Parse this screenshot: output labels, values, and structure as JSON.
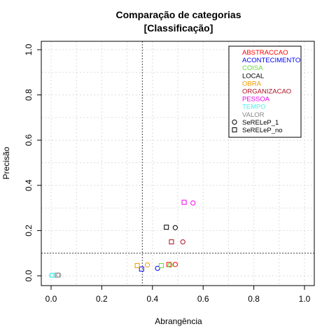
{
  "chart_data": {
    "type": "scatter",
    "title_line1": "Comparação de categorias",
    "title_line2": "[Classificação]",
    "xlabel": "Abrangência",
    "ylabel": "Precisão",
    "xlim": [
      0,
      1
    ],
    "ylim": [
      0,
      1
    ],
    "xticks": [
      "0.0",
      "0.2",
      "0.4",
      "0.6",
      "0.8",
      "1.0"
    ],
    "yticks": [
      "0.0",
      "0.2",
      "0.4",
      "0.6",
      "0.8",
      "1.0"
    ],
    "grid": true,
    "reference_lines": {
      "vertical_x": 0.36,
      "horizontal_y": 0.1
    },
    "legend_position": "top-right",
    "categories": [
      {
        "name": "ABSTRACCAO",
        "color": "#ff0000"
      },
      {
        "name": "ACONTECIMENTO",
        "color": "#0000ff"
      },
      {
        "name": "COISA",
        "color": "#66dd33"
      },
      {
        "name": "LOCAL",
        "color": "#000000"
      },
      {
        "name": "OBRA",
        "color": "#ee9900"
      },
      {
        "name": "ORGANIZACAO",
        "color": "#aa1122"
      },
      {
        "name": "PESSOA",
        "color": "#ee00ee"
      },
      {
        "name": "TEMPO",
        "color": "#55eeee"
      },
      {
        "name": "VALOR",
        "color": "#888888"
      }
    ],
    "markers": [
      {
        "name": "SeRELeP_1",
        "shape": "circle"
      },
      {
        "name": "SeRELeP_no",
        "shape": "square"
      }
    ],
    "points": [
      {
        "category": "ABSTRACCAO",
        "marker": "square",
        "x": 0.465,
        "y": 0.05
      },
      {
        "category": "ABSTRACCAO",
        "marker": "circle",
        "x": 0.49,
        "y": 0.05
      },
      {
        "category": "ACONTECIMENTO",
        "marker": "square",
        "x": 0.357,
        "y": 0.03
      },
      {
        "category": "ACONTECIMENTO",
        "marker": "circle",
        "x": 0.42,
        "y": 0.033
      },
      {
        "category": "COISA",
        "marker": "square",
        "x": 0.435,
        "y": 0.045
      },
      {
        "category": "COISA",
        "marker": "circle",
        "x": 0.47,
        "y": 0.047
      },
      {
        "category": "LOCAL",
        "marker": "square",
        "x": 0.455,
        "y": 0.215
      },
      {
        "category": "LOCAL",
        "marker": "circle",
        "x": 0.49,
        "y": 0.213
      },
      {
        "category": "OBRA",
        "marker": "square",
        "x": 0.34,
        "y": 0.045
      },
      {
        "category": "OBRA",
        "marker": "circle",
        "x": 0.38,
        "y": 0.048
      },
      {
        "category": "ORGANIZACAO",
        "marker": "square",
        "x": 0.475,
        "y": 0.15
      },
      {
        "category": "ORGANIZACAO",
        "marker": "circle",
        "x": 0.52,
        "y": 0.15
      },
      {
        "category": "PESSOA",
        "marker": "square",
        "x": 0.525,
        "y": 0.325
      },
      {
        "category": "PESSOA",
        "marker": "circle",
        "x": 0.56,
        "y": 0.322
      },
      {
        "category": "TEMPO",
        "marker": "circle",
        "x": 0.002,
        "y": 0.002
      },
      {
        "category": "TEMPO",
        "marker": "square",
        "x": 0.006,
        "y": 0.002
      },
      {
        "category": "VALOR",
        "marker": "square",
        "x": 0.025,
        "y": 0.003
      },
      {
        "category": "VALOR",
        "marker": "circle",
        "x": 0.03,
        "y": 0.003
      }
    ]
  }
}
